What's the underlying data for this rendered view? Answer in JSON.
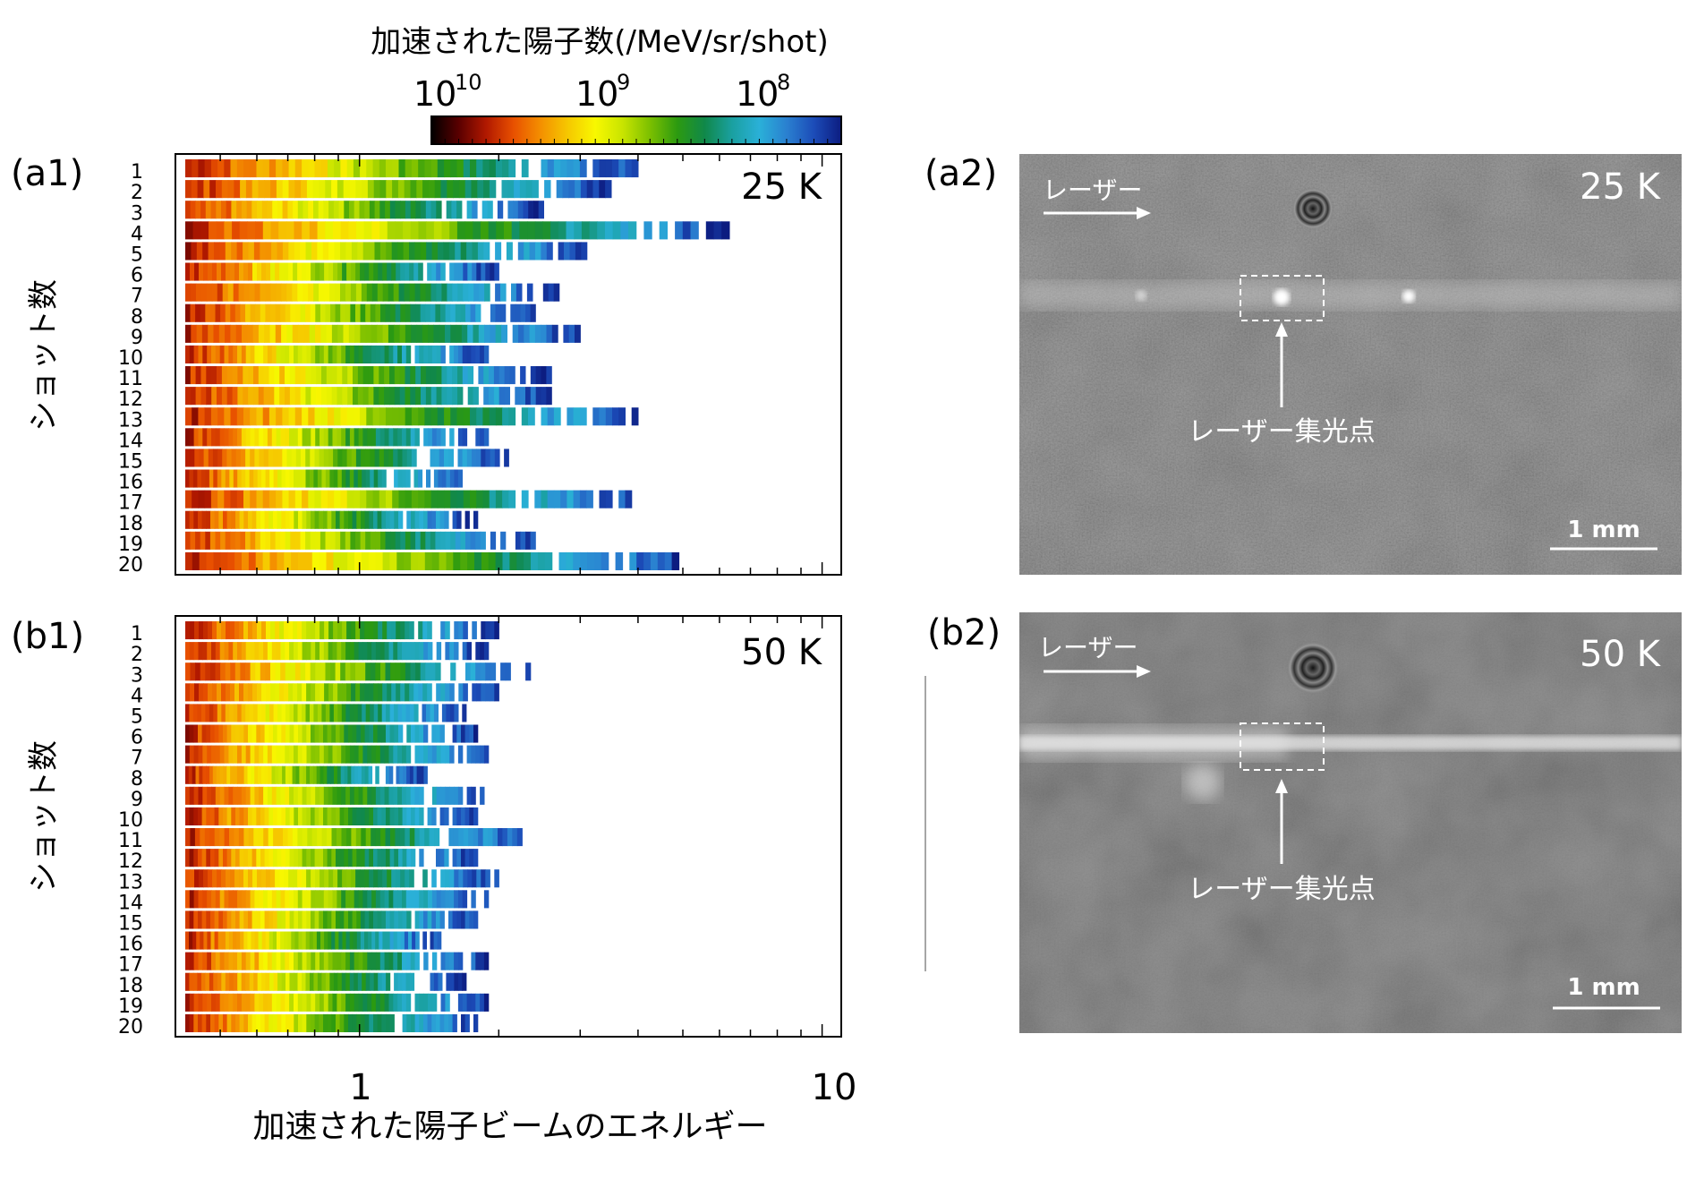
{
  "colorbar": {
    "title": "加速された陽子数(/MeV/sr/shot)",
    "ticks": [
      {
        "base": "10",
        "exp": "10",
        "value": 10000000000
      },
      {
        "base": "10",
        "exp": "9",
        "value": 1000000000
      },
      {
        "base": "10",
        "exp": "8",
        "value": 100000000
      }
    ],
    "colors": [
      "#000000",
      "#5a0000",
      "#b01800",
      "#e85000",
      "#f49000",
      "#f6c800",
      "#f8f800",
      "#c8e400",
      "#7cc000",
      "#2c9a10",
      "#10884a",
      "#1aa0a0",
      "#2ab0d8",
      "#2a80d0",
      "#1c4cb8",
      "#0c1c80"
    ]
  },
  "shared": {
    "ylabel": "ショット数",
    "xlabel": "加速された陽子ビームのエネルギー",
    "xticks": [
      "1",
      "10"
    ]
  },
  "panels": {
    "a1": {
      "label": "(a1)",
      "temp": "25 K"
    },
    "b1": {
      "label": "(b1)",
      "temp": "50 K"
    },
    "a2": {
      "label": "(a2)",
      "temp": "25 K",
      "laser": "レーザー",
      "focus": "レーザー集光点",
      "scale": "1 mm"
    },
    "b2": {
      "label": "(b2)",
      "temp": "50 K",
      "laser": "レーザー",
      "focus": "レーザー集光点",
      "scale": "1 mm"
    }
  },
  "chart_data": [
    {
      "type": "heatmap",
      "panel": "a1",
      "xscale": "log",
      "xlim": [
        0.4,
        11
      ],
      "y": [
        "1",
        "2",
        "3",
        "4",
        "5",
        "6",
        "7",
        "8",
        "9",
        "10",
        "11",
        "12",
        "13",
        "14",
        "15",
        "16",
        "17",
        "18",
        "19",
        "20"
      ],
      "max_energy": [
        4.0,
        3.5,
        2.5,
        6.3,
        3.1,
        2.0,
        2.7,
        2.4,
        3.0,
        1.9,
        2.6,
        2.6,
        4.0,
        1.9,
        2.1,
        1.7,
        4.0,
        1.8,
        2.4,
        4.9
      ]
    },
    {
      "type": "heatmap",
      "panel": "b1",
      "xscale": "log",
      "xlim": [
        0.4,
        11
      ],
      "y": [
        "1",
        "2",
        "3",
        "4",
        "5",
        "6",
        "7",
        "8",
        "9",
        "10",
        "11",
        "12",
        "13",
        "14",
        "15",
        "16",
        "17",
        "18",
        "19",
        "20"
      ],
      "max_energy": [
        2.0,
        1.9,
        2.4,
        2.0,
        1.7,
        1.8,
        1.9,
        1.4,
        1.9,
        1.8,
        2.3,
        1.8,
        2.0,
        1.9,
        1.8,
        1.5,
        1.9,
        1.7,
        1.9,
        1.8
      ]
    }
  ]
}
